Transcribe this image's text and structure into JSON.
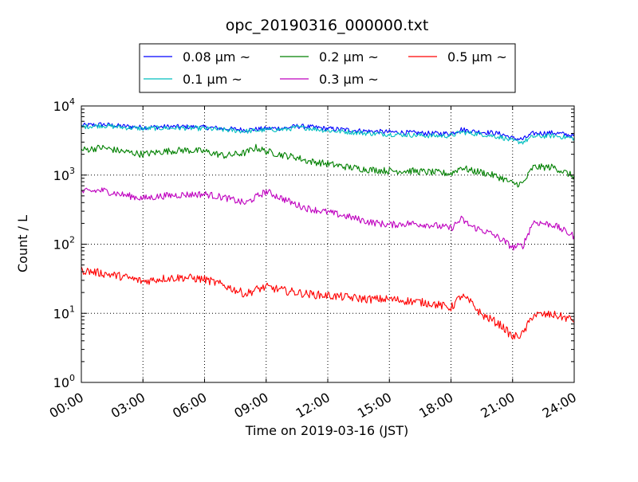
{
  "chart_data": {
    "type": "line",
    "title": "opc_20190316_000000.txt",
    "xlabel": "Time on 2019-03-16 (JST)",
    "ylabel": "Count / L",
    "x_unit": "hours since 00:00",
    "xlim": [
      0,
      24
    ],
    "ylim": [
      1,
      10000
    ],
    "yscale": "log",
    "grid": true,
    "legend_position": "top, above plot",
    "x_tick_labels": [
      "00:00",
      "03:00",
      "06:00",
      "09:00",
      "12:00",
      "15:00",
      "18:00",
      "21:00",
      "24:00"
    ],
    "y_tick_labels": [
      {
        "base": "10",
        "exp": "0"
      },
      {
        "base": "10",
        "exp": "1"
      },
      {
        "base": "10",
        "exp": "2"
      },
      {
        "base": "10",
        "exp": "3"
      },
      {
        "base": "10",
        "exp": "4"
      }
    ],
    "x": [
      0,
      1,
      2,
      3,
      4,
      5,
      6,
      7,
      8,
      8.5,
      9,
      10,
      10.5,
      11,
      12,
      13,
      14,
      15,
      16,
      17,
      18,
      18.5,
      19,
      19.5,
      20,
      20.5,
      21,
      21.5,
      22,
      23,
      24
    ],
    "series": [
      {
        "name": "0.08 μm ~",
        "color": "#0000ff",
        "values": [
          5200,
          5400,
          5100,
          4900,
          5000,
          5000,
          4900,
          4700,
          4500,
          4600,
          4700,
          4800,
          5100,
          5000,
          4700,
          4500,
          4300,
          4200,
          4100,
          4000,
          4000,
          4600,
          4300,
          4200,
          4100,
          3900,
          3400,
          3300,
          4000,
          4100,
          3700
        ]
      },
      {
        "name": "0.1 μm ~",
        "color": "#00bfbf",
        "values": [
          5000,
          5200,
          4900,
          4700,
          4800,
          4800,
          4700,
          4500,
          4300,
          4400,
          4500,
          4600,
          4900,
          4800,
          4400,
          4200,
          4000,
          3900,
          3800,
          3700,
          3700,
          4200,
          4000,
          3900,
          3700,
          3500,
          3100,
          3000,
          3600,
          3700,
          3400
        ]
      },
      {
        "name": "0.2 μm ~",
        "color": "#008000",
        "values": [
          2300,
          2500,
          2200,
          2000,
          2200,
          2300,
          2200,
          1900,
          2100,
          2500,
          2200,
          1900,
          1800,
          1600,
          1450,
          1300,
          1200,
          1150,
          1150,
          1100,
          1050,
          1300,
          1150,
          1100,
          1000,
          900,
          750,
          750,
          1300,
          1300,
          950
        ]
      },
      {
        "name": "0.3 μm ~",
        "color": "#bf00bf",
        "values": [
          570,
          600,
          520,
          460,
          500,
          520,
          530,
          470,
          390,
          480,
          580,
          430,
          370,
          330,
          290,
          250,
          210,
          190,
          200,
          190,
          170,
          230,
          180,
          160,
          140,
          115,
          90,
          95,
          210,
          190,
          130
        ]
      },
      {
        "name": "0.5 μm ~",
        "color": "#ff0000",
        "values": [
          42,
          38,
          34,
          29,
          32,
          33,
          31,
          25,
          19,
          22,
          24,
          21,
          20,
          19,
          18,
          17,
          16,
          16,
          15,
          14,
          12,
          18,
          14,
          9.5,
          8,
          6.5,
          4.5,
          5,
          9.5,
          9.5,
          8
        ]
      }
    ]
  }
}
